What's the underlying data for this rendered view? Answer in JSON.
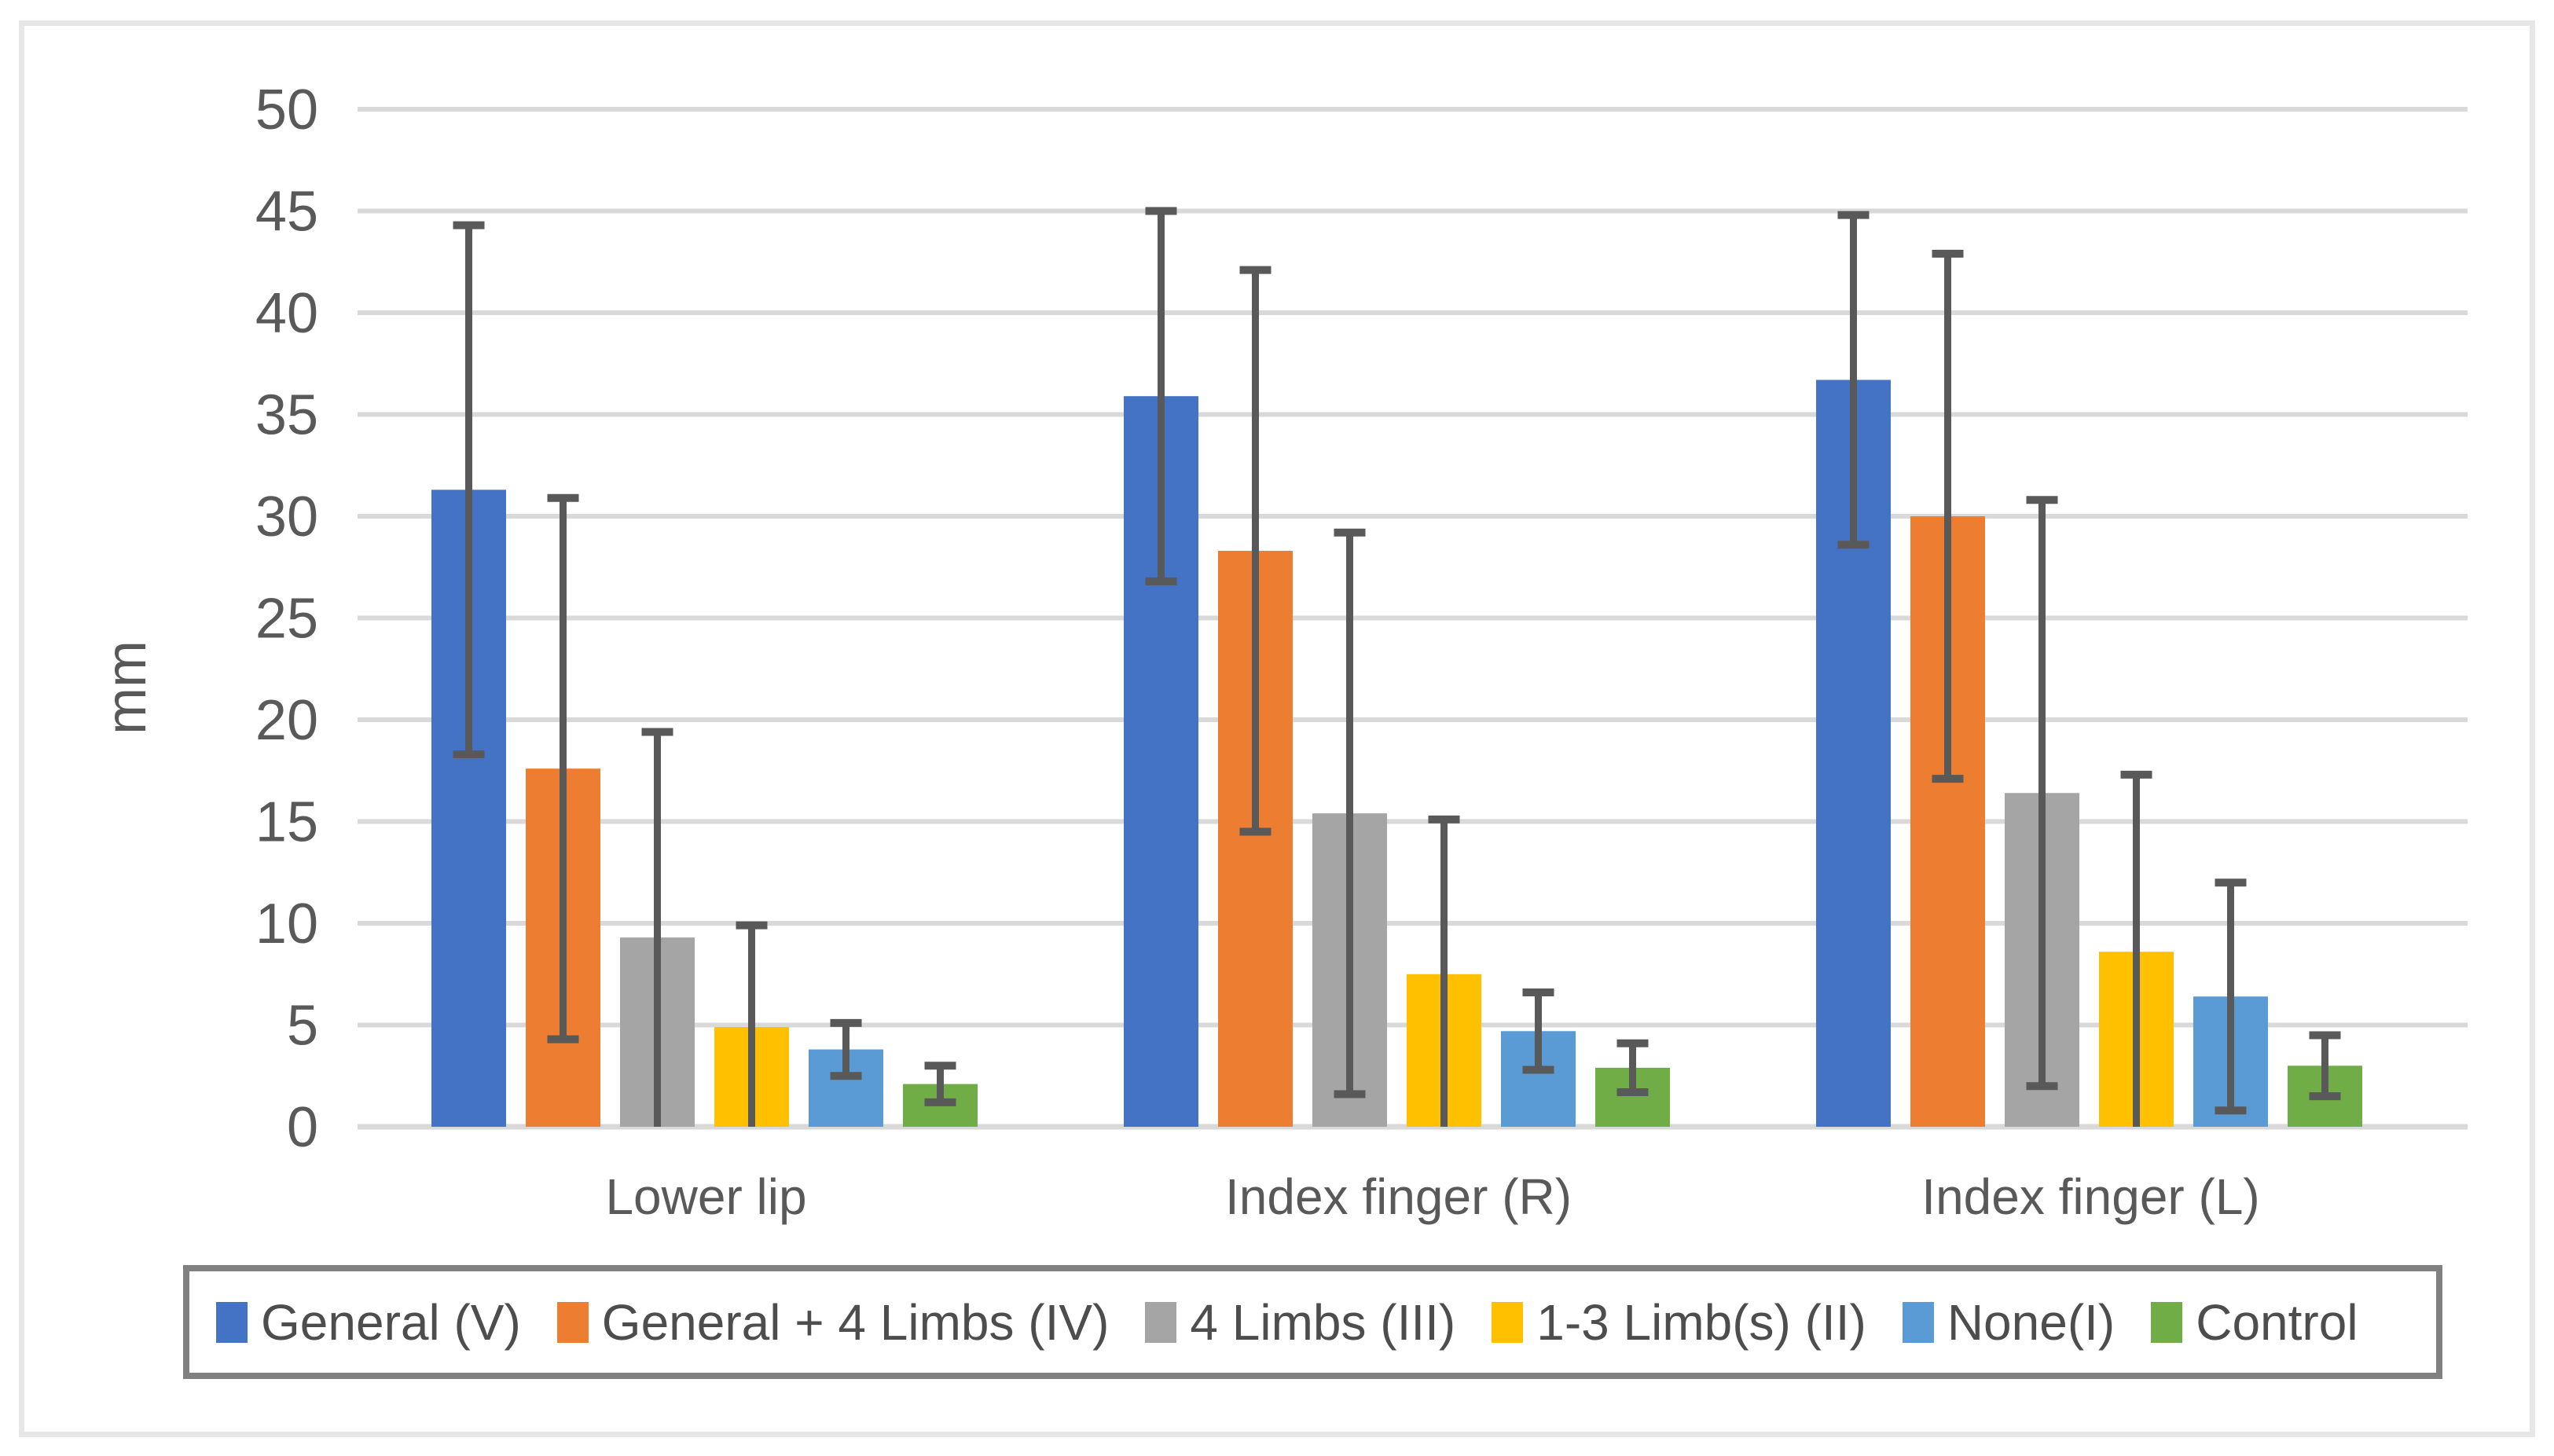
{
  "figure": {
    "background": "#ffffff",
    "frame_border_color": "#e7e7e7"
  },
  "y_axis": {
    "title": "mm",
    "tick_labels": [
      "0",
      "5",
      "10",
      "15",
      "20",
      "25",
      "30",
      "35",
      "40",
      "45",
      "50"
    ],
    "text_color": "#595959"
  },
  "legend": {
    "border_color": "#808080",
    "items": [
      {
        "label": "General (V)",
        "color": "#4472C4"
      },
      {
        "label": "General + 4 Limbs (IV)",
        "color": "#ED7D31"
      },
      {
        "label": "4 Limbs (III)",
        "color": "#A5A5A5"
      },
      {
        "label": "1-3 Limb(s) (II)",
        "color": "#FFC000"
      },
      {
        "label": "None(I)",
        "color": "#5B9BD5"
      },
      {
        "label": "Control",
        "color": "#70AD47"
      }
    ]
  },
  "chart_data": {
    "type": "bar",
    "title": "",
    "xlabel": "",
    "ylabel": "mm",
    "ylim": [
      0,
      50
    ],
    "ytick_step": 5,
    "grid": true,
    "gridline_color": "#D9D9D9",
    "error_bar_color": "#595959",
    "legend_position": "bottom",
    "categories": [
      "Lower lip",
      "Index finger (R)",
      "Index finger (L)"
    ],
    "series": [
      {
        "name": "General (V)",
        "color": "#4472C4",
        "values": [
          31.3,
          35.9,
          36.7
        ],
        "errors": [
          13.0,
          9.1,
          8.1
        ]
      },
      {
        "name": "General + 4 Limbs (IV)",
        "color": "#ED7D31",
        "values": [
          17.6,
          28.3,
          30.0
        ],
        "errors": [
          13.3,
          13.8,
          12.9
        ]
      },
      {
        "name": "4 Limbs (III)",
        "color": "#A5A5A5",
        "values": [
          9.3,
          15.4,
          16.4
        ],
        "errors": [
          10.1,
          13.8,
          14.4
        ]
      },
      {
        "name": "1-3 Limb(s) (II)",
        "color": "#FFC000",
        "values": [
          4.9,
          7.5,
          8.6
        ],
        "errors": [
          5.0,
          7.6,
          8.7
        ]
      },
      {
        "name": "None(I)",
        "color": "#5B9BD5",
        "values": [
          3.8,
          4.7,
          6.4
        ],
        "errors": [
          1.3,
          1.9,
          5.6
        ]
      },
      {
        "name": "Control",
        "color": "#70AD47",
        "values": [
          2.1,
          2.9,
          3.0
        ],
        "errors": [
          0.9,
          1.2,
          1.5
        ]
      }
    ]
  }
}
